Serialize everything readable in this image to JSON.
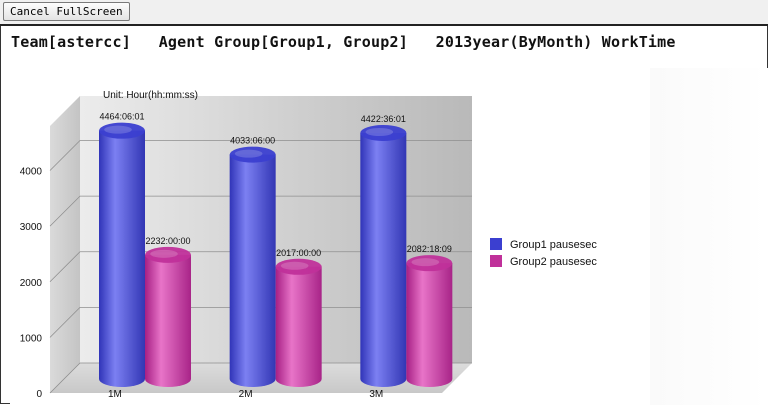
{
  "toolbar": {
    "cancel_label": "Cancel FullScreen"
  },
  "page": {
    "heading": "Team[astercc]   Agent Group[Group1, Group2]   2013year(ByMonth) WorkTime"
  },
  "chart_data": {
    "type": "bar",
    "subtitle": "Unit: Hour(hh:mm:ss)",
    "categories": [
      "1M",
      "2M",
      "3M"
    ],
    "ylim": [
      0,
      4800
    ],
    "yticks": [
      0,
      1000,
      2000,
      3000,
      4000
    ],
    "grid": true,
    "legend_position": "right",
    "series": [
      {
        "name": "Group1 pausesec",
        "color": "#3b3fd0",
        "values": [
          4464.1,
          4033.1,
          4422.6
        ],
        "labels": [
          "4464:06:01",
          "4033:06:00",
          "4422:36:01"
        ]
      },
      {
        "name": "Group2 pausesec",
        "color": "#c0309a",
        "values": [
          2232.0,
          2017.0,
          2082.3
        ],
        "labels": [
          "2232:00:00",
          "2017:00:00",
          "2082:18:09"
        ]
      }
    ]
  }
}
